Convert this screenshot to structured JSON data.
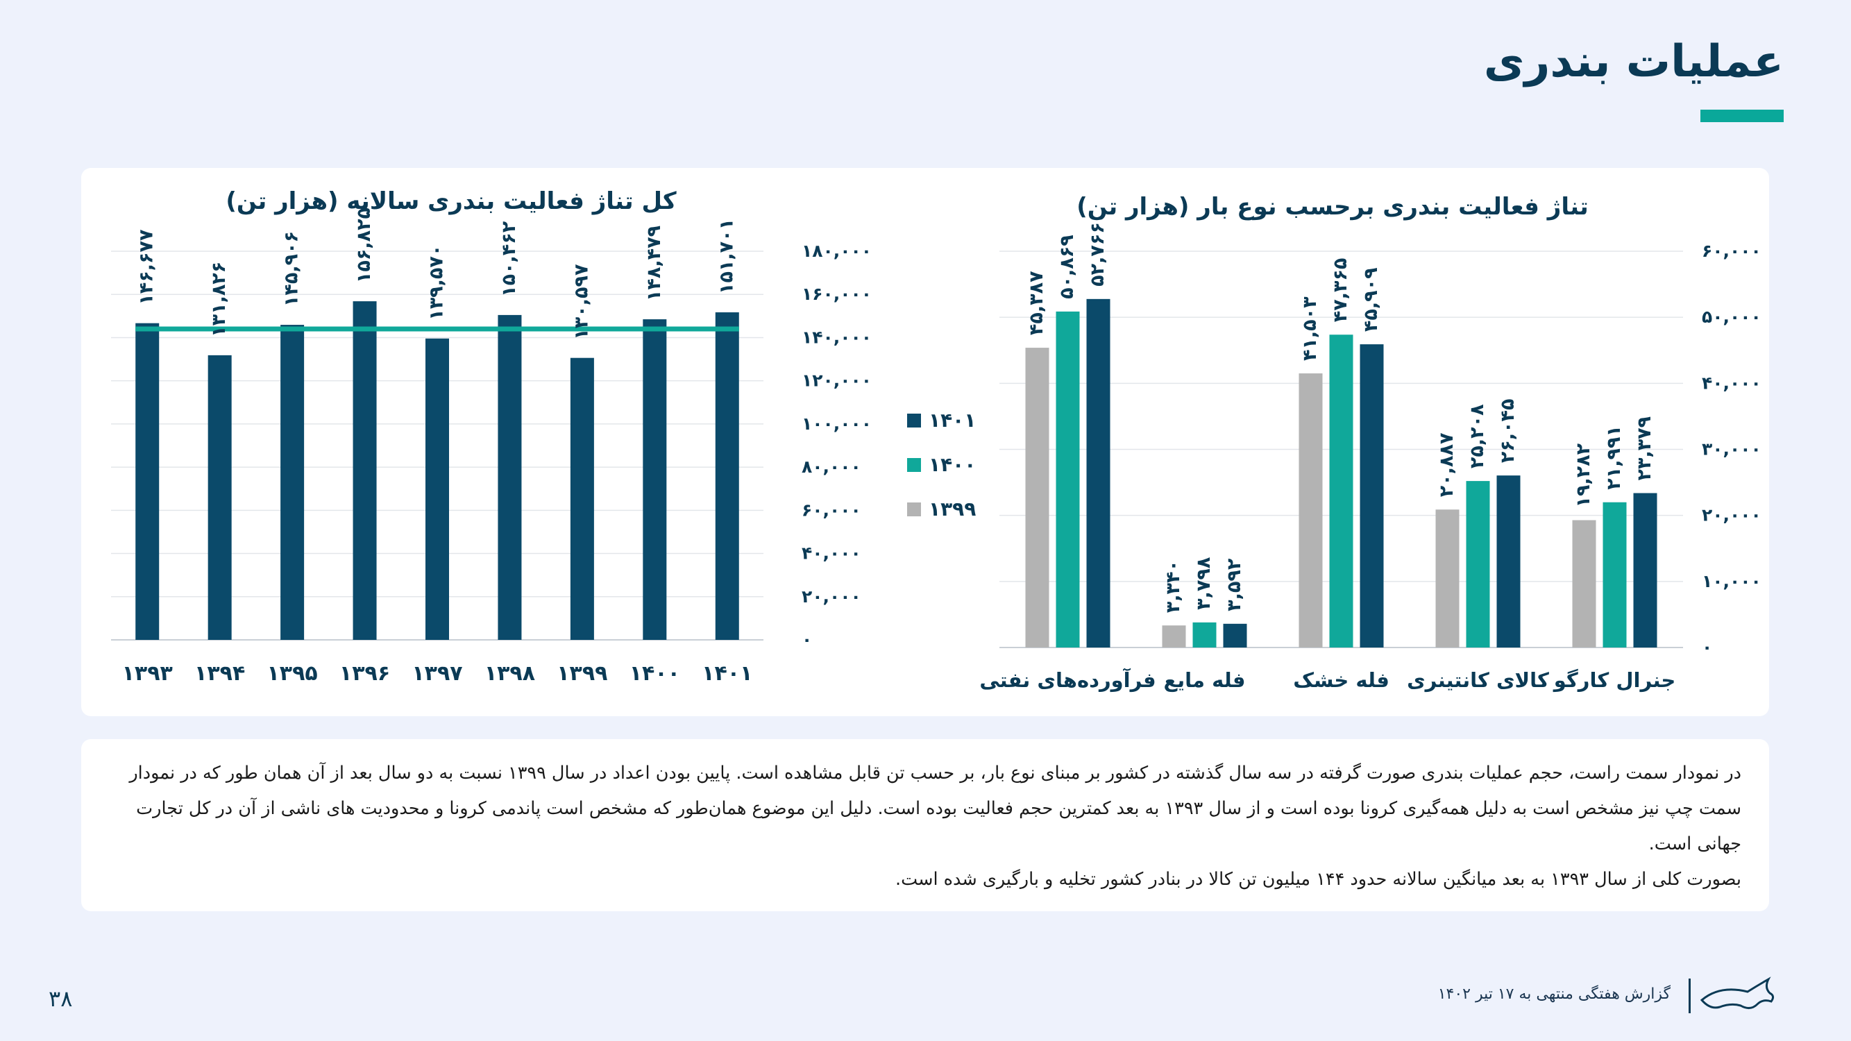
{
  "page": {
    "title": "عملیات بندری",
    "accent_color": "#0aa89a",
    "dark_color": "#0b3a55",
    "page_number": "۳۸"
  },
  "footer": {
    "report_label": "گزارش هفتگی منتهی به ۱۷ تیر ۱۴۰۲",
    "logo_icon": "bull-logo-icon"
  },
  "description": {
    "paragraph1": "در نمودار سمت راست، حجم عملیات بندری صورت گرفته در سه سال گذشته در کشور بر مبنای نوع بار، بر حسب تن قابل مشاهده است. پایین بودن اعداد در سال ۱۳۹۹ نسبت به دو سال بعد از آن همان طور که در نمودار سمت چپ نیز مشخص است به دلیل همه‌گیری کرونا بوده است و از سال ۱۳۹۳ به بعد کمترین حجم فعالیت بوده است. دلیل این موضوع همان‌طور که مشخص است پاندمی کرونا و محدودیت های ناشی از آن در کل تجارت جهانی است.",
    "paragraph2": "بصورت کلی از سال ۱۳۹۳ به بعد میانگین سالانه حدود ۱۴۴ میلیون تن کالا در بنادر کشور تخلیه و بارگیری شده است."
  },
  "chart_data": [
    {
      "type": "bar",
      "title": "کل تناژ فعالیت بندری سالانه (هزار تن)",
      "categories": [
        "۱۳۹۳",
        "۱۳۹۴",
        "۱۳۹۵",
        "۱۳۹۶",
        "۱۳۹۷",
        "۱۳۹۸",
        "۱۳۹۹",
        "۱۴۰۰",
        "۱۴۰۱"
      ],
      "values": [
        146677,
        131826,
        145906,
        156825,
        139570,
        150462,
        130597,
        148479,
        151701
      ],
      "value_labels": [
        "۱۴۶,۶۷۷",
        "۱۳۱,۸۲۶",
        "۱۴۵,۹۰۶",
        "۱۵۶,۸۲۵",
        "۱۳۹,۵۷۰",
        "۱۵۰,۴۶۲",
        "۱۳۰,۵۹۷",
        "۱۴۸,۴۷۹",
        "۱۵۱,۷۰۱"
      ],
      "average_line": 144000,
      "ylim": [
        0,
        180000
      ],
      "yticks": [
        "۰",
        "۲۰,۰۰۰",
        "۴۰,۰۰۰",
        "۶۰,۰۰۰",
        "۸۰,۰۰۰",
        "۱۰۰,۰۰۰",
        "۱۲۰,۰۰۰",
        "۱۴۰,۰۰۰",
        "۱۶۰,۰۰۰",
        "۱۸۰,۰۰۰"
      ],
      "y_axis_side": "right",
      "grid": true,
      "bar_color": "#0b4a6a",
      "line_color": "#10a89a"
    },
    {
      "type": "bar",
      "title": "تناژ فعالیت بندری برحسب نوع بار (هزار تن)",
      "categories": [
        "فرآورده‌های نفتی",
        "فله مایع",
        "فله خشک",
        "کالای کانتینری",
        "جنرال کارگو"
      ],
      "series": [
        {
          "name": "۱۳۹۹",
          "color": "#b3b3b3",
          "values": [
            45387,
            3340,
            41503,
            20887,
            19282
          ],
          "labels": [
            "۴۵,۳۸۷",
            "۳,۳۴۰",
            "۴۱,۵۰۳",
            "۲۰,۸۸۷",
            "۱۹,۲۸۲"
          ]
        },
        {
          "name": "۱۴۰۰",
          "color": "#10a89a",
          "values": [
            50869,
            3798,
            47365,
            25208,
            21991
          ],
          "labels": [
            "۵۰,۸۶۹",
            "۳,۷۹۸",
            "۴۷,۳۶۵",
            "۲۵,۲۰۸",
            "۲۱,۹۹۱"
          ]
        },
        {
          "name": "۱۴۰۱",
          "color": "#0b4a6a",
          "values": [
            52766,
            3592,
            45909,
            26045,
            23379
          ],
          "labels": [
            "۵۲,۷۶۶",
            "۳,۵۹۲",
            "۴۵,۹۰۹",
            "۲۶,۰۴۵",
            "۲۳,۳۷۹"
          ]
        }
      ],
      "ylim": [
        0,
        60000
      ],
      "yticks": [
        "۰",
        "۱۰,۰۰۰",
        "۲۰,۰۰۰",
        "۳۰,۰۰۰",
        "۴۰,۰۰۰",
        "۵۰,۰۰۰",
        "۶۰,۰۰۰"
      ],
      "y_axis_side": "right",
      "grid": true,
      "legend_position": "left"
    }
  ]
}
